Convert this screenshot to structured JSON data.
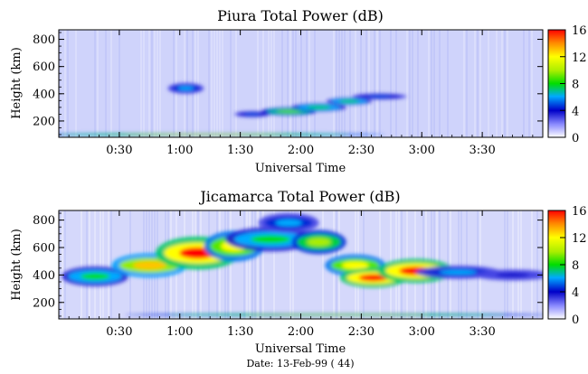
{
  "chart_data": [
    {
      "type": "heatmap",
      "title": "Piura Total Power (dB)",
      "xlabel": "Universal Time",
      "ylabel": "Height (km)",
      "x_tick_labels": [
        "0:30",
        "1:00",
        "1:30",
        "2:00",
        "2:30",
        "3:00",
        "3:30"
      ],
      "x_tick_values_hours": [
        0.5,
        1.0,
        1.5,
        2.0,
        2.5,
        3.0,
        3.5
      ],
      "xlim_hours": [
        0.0,
        4.0
      ],
      "y_tick_labels": [
        "200",
        "400",
        "600",
        "800"
      ],
      "y_tick_values": [
        200,
        400,
        600,
        800
      ],
      "ylim": [
        80,
        870
      ],
      "colorbar": {
        "label_values": [
          "0",
          "4",
          "8",
          "12",
          "16"
        ],
        "range": [
          0,
          16
        ]
      },
      "features": [
        {
          "t": 1.05,
          "h": 440,
          "dt": 0.12,
          "dh": 25,
          "v": 6
        },
        {
          "t": 1.6,
          "h": 250,
          "dt": 0.12,
          "dh": 14,
          "v": 5
        },
        {
          "t": 1.9,
          "h": 270,
          "dt": 0.18,
          "dh": 18,
          "v": 9
        },
        {
          "t": 2.15,
          "h": 300,
          "dt": 0.18,
          "dh": 18,
          "v": 8
        },
        {
          "t": 2.4,
          "h": 345,
          "dt": 0.15,
          "dh": 16,
          "v": 8
        },
        {
          "t": 2.65,
          "h": 380,
          "dt": 0.18,
          "dh": 14,
          "v": 5
        },
        {
          "t": 1.2,
          "h": 100,
          "dt": 1.2,
          "dh": 6,
          "v": 11
        }
      ]
    },
    {
      "type": "heatmap",
      "title": "Jicamarca Total Power (dB)",
      "xlabel": "Universal Time",
      "ylabel": "Height (km)",
      "x_tick_labels": [
        "0:30",
        "1:00",
        "1:30",
        "2:00",
        "2:30",
        "3:00",
        "3:30"
      ],
      "x_tick_values_hours": [
        0.5,
        1.0,
        1.5,
        2.0,
        2.5,
        3.0,
        3.5
      ],
      "xlim_hours": [
        0.0,
        4.0
      ],
      "y_tick_labels": [
        "200",
        "400",
        "600",
        "800"
      ],
      "y_tick_values": [
        200,
        400,
        600,
        800
      ],
      "ylim": [
        80,
        870
      ],
      "colorbar": {
        "label_values": [
          "0",
          "4",
          "8",
          "12",
          "16"
        ],
        "range": [
          0,
          16
        ]
      },
      "features": [
        {
          "t": 0.3,
          "h": 390,
          "dt": 0.22,
          "dh": 45,
          "v": 8
        },
        {
          "t": 0.75,
          "h": 470,
          "dt": 0.25,
          "dh": 55,
          "v": 13
        },
        {
          "t": 1.15,
          "h": 560,
          "dt": 0.28,
          "dh": 75,
          "v": 16
        },
        {
          "t": 1.45,
          "h": 610,
          "dt": 0.2,
          "dh": 70,
          "v": 12
        },
        {
          "t": 1.75,
          "h": 660,
          "dt": 0.3,
          "dh": 55,
          "v": 8
        },
        {
          "t": 1.9,
          "h": 780,
          "dt": 0.2,
          "dh": 45,
          "v": 6
        },
        {
          "t": 2.15,
          "h": 640,
          "dt": 0.18,
          "dh": 55,
          "v": 10
        },
        {
          "t": 2.45,
          "h": 470,
          "dt": 0.2,
          "dh": 50,
          "v": 12
        },
        {
          "t": 2.6,
          "h": 380,
          "dt": 0.22,
          "dh": 45,
          "v": 16
        },
        {
          "t": 2.95,
          "h": 430,
          "dt": 0.25,
          "dh": 55,
          "v": 16
        },
        {
          "t": 3.3,
          "h": 420,
          "dt": 0.28,
          "dh": 30,
          "v": 6
        },
        {
          "t": 3.75,
          "h": 400,
          "dt": 0.25,
          "dh": 25,
          "v": 4
        },
        {
          "t": 2.3,
          "h": 110,
          "dt": 1.4,
          "dh": 6,
          "v": 10
        }
      ]
    }
  ],
  "footer": {
    "date_label": "Date: 13-Feb-99 ( 44)"
  }
}
